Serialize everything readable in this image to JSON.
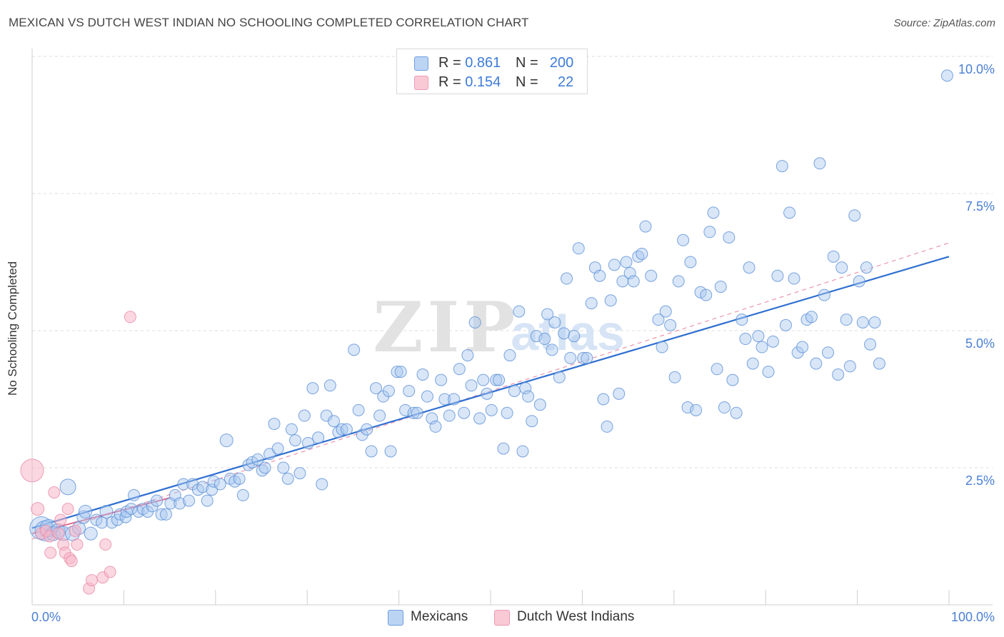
{
  "title": "MEXICAN VS DUTCH WEST INDIAN NO SCHOOLING COMPLETED CORRELATION CHART",
  "source": "Source: ZipAtlas.com",
  "watermark": {
    "zip": "ZIP",
    "atlas": "atlas"
  },
  "legend_top": [
    {
      "r_label": "R =",
      "r_value": "0.861",
      "n_label": "N =",
      "n_value": "200",
      "color": "#a9c8f0"
    },
    {
      "r_label": "R =",
      "r_value": "0.154",
      "n_label": "N =",
      "n_value": "22",
      "color": "#f7b6c8"
    }
  ],
  "legend_bottom": [
    {
      "label": "Mexicans",
      "color": "#a9c8f0"
    },
    {
      "label": "Dutch West Indians",
      "color": "#f7b6c8"
    }
  ],
  "chart_data": {
    "type": "scatter",
    "title": "MEXICAN VS DUTCH WEST INDIAN NO SCHOOLING COMPLETED CORRELATION CHART",
    "xlabel": "",
    "ylabel": "No Schooling Completed",
    "xlim": [
      0,
      100
    ],
    "ylim": [
      0,
      10
    ],
    "x_tick_labels": [
      "0.0%",
      "100.0%"
    ],
    "y_ticks": [
      2.5,
      5.0,
      7.5,
      10.0
    ],
    "y_tick_labels": [
      "2.5%",
      "5.0%",
      "7.5%",
      "10.0%"
    ],
    "grid": true,
    "legend_position": "top-center",
    "series": [
      {
        "name": "Mexicans",
        "color": "#a9c8f0",
        "stroke": "#5b8fd6",
        "r": 0.861,
        "n": 200,
        "trend": {
          "x": [
            0,
            100
          ],
          "y": [
            1.4,
            6.35
          ]
        },
        "points": [
          [
            1.0,
            1.4,
            16
          ],
          [
            1.4,
            1.35,
            14
          ],
          [
            1.8,
            1.4,
            12
          ],
          [
            2.3,
            1.3,
            10
          ],
          [
            2.8,
            1.35,
            10
          ],
          [
            3.4,
            1.3,
            10
          ],
          [
            3.9,
            2.15,
            11
          ],
          [
            4.4,
            1.3,
            10
          ],
          [
            5.1,
            1.4,
            9
          ],
          [
            5.6,
            1.6,
            9
          ],
          [
            5.8,
            1.7,
            9
          ],
          [
            6.4,
            1.3,
            9
          ],
          [
            7.0,
            1.55,
            8
          ],
          [
            7.6,
            1.5,
            8
          ],
          [
            8.1,
            1.7,
            9
          ],
          [
            8.7,
            1.5,
            8
          ],
          [
            9.3,
            1.55,
            8
          ],
          [
            9.6,
            1.65,
            8
          ],
          [
            10.2,
            1.6,
            8
          ],
          [
            10.3,
            1.7,
            8
          ],
          [
            10.8,
            1.75,
            8
          ],
          [
            11.1,
            2.0,
            8
          ],
          [
            11.6,
            1.7,
            8
          ],
          [
            12.1,
            1.75,
            8
          ],
          [
            12.6,
            1.7,
            8
          ],
          [
            13.1,
            1.8,
            8
          ],
          [
            13.6,
            1.9,
            8
          ],
          [
            14.1,
            1.65,
            8
          ],
          [
            14.6,
            1.65,
            8
          ],
          [
            15.1,
            1.85,
            8
          ],
          [
            15.6,
            2.0,
            8
          ],
          [
            16.1,
            1.85,
            8
          ],
          [
            16.5,
            2.2,
            8
          ],
          [
            17.1,
            1.9,
            8
          ],
          [
            17.5,
            2.2,
            8
          ],
          [
            18.1,
            2.1,
            8
          ],
          [
            18.6,
            2.15,
            8
          ],
          [
            19.1,
            1.9,
            8
          ],
          [
            19.6,
            2.1,
            8
          ],
          [
            19.8,
            2.25,
            8
          ],
          [
            20.5,
            2.2,
            8
          ],
          [
            21.2,
            3.0,
            9
          ],
          [
            21.6,
            2.3,
            8
          ],
          [
            22.1,
            2.25,
            8
          ],
          [
            22.6,
            2.3,
            8
          ],
          [
            23.0,
            2.0,
            8
          ],
          [
            23.6,
            2.55,
            8
          ],
          [
            24.0,
            2.6,
            8
          ],
          [
            24.6,
            2.65,
            8
          ],
          [
            25.1,
            2.45,
            8
          ],
          [
            25.4,
            2.5,
            8
          ],
          [
            25.9,
            2.75,
            8
          ],
          [
            26.4,
            3.3,
            8
          ],
          [
            26.8,
            2.85,
            8
          ],
          [
            27.4,
            2.5,
            8
          ],
          [
            27.9,
            2.3,
            8
          ],
          [
            28.3,
            3.2,
            8
          ],
          [
            28.7,
            3.0,
            8
          ],
          [
            29.2,
            2.4,
            8
          ],
          [
            29.7,
            3.45,
            8
          ],
          [
            30.1,
            2.95,
            8
          ],
          [
            30.6,
            3.95,
            8
          ],
          [
            31.2,
            3.05,
            8
          ],
          [
            31.6,
            2.2,
            8
          ],
          [
            32.1,
            3.45,
            8
          ],
          [
            32.5,
            4.0,
            8
          ],
          [
            32.9,
            3.35,
            8
          ],
          [
            33.4,
            3.15,
            8
          ],
          [
            33.8,
            3.2,
            8
          ],
          [
            34.3,
            3.2,
            8
          ],
          [
            35.1,
            4.65,
            8
          ],
          [
            35.6,
            3.55,
            8
          ],
          [
            36.0,
            3.1,
            8
          ],
          [
            36.5,
            3.2,
            8
          ],
          [
            37.0,
            2.8,
            8
          ],
          [
            37.5,
            3.95,
            8
          ],
          [
            37.9,
            3.45,
            8
          ],
          [
            38.3,
            3.8,
            8
          ],
          [
            38.9,
            3.9,
            8
          ],
          [
            39.1,
            2.8,
            8
          ],
          [
            39.8,
            4.25,
            8
          ],
          [
            40.2,
            4.25,
            8
          ],
          [
            40.7,
            3.55,
            8
          ],
          [
            41.1,
            3.9,
            8
          ],
          [
            41.6,
            3.5,
            8
          ],
          [
            42.0,
            3.5,
            8
          ],
          [
            42.6,
            4.2,
            8
          ],
          [
            43.1,
            3.8,
            8
          ],
          [
            43.6,
            3.4,
            8
          ],
          [
            44.0,
            3.25,
            8
          ],
          [
            44.6,
            4.1,
            8
          ],
          [
            45.0,
            3.75,
            8
          ],
          [
            45.5,
            3.45,
            8
          ],
          [
            46.0,
            3.75,
            8
          ],
          [
            46.6,
            4.3,
            8
          ],
          [
            47.1,
            3.5,
            8
          ],
          [
            47.5,
            4.55,
            8
          ],
          [
            47.9,
            4.0,
            8
          ],
          [
            48.3,
            5.15,
            8
          ],
          [
            48.8,
            3.4,
            8
          ],
          [
            49.2,
            4.1,
            8
          ],
          [
            49.6,
            3.85,
            8
          ],
          [
            50.1,
            3.55,
            8
          ],
          [
            50.6,
            4.1,
            8
          ],
          [
            50.9,
            4.1,
            8
          ],
          [
            51.4,
            2.85,
            8
          ],
          [
            51.8,
            3.5,
            8
          ],
          [
            52.1,
            4.55,
            8
          ],
          [
            52.6,
            3.9,
            8
          ],
          [
            53.1,
            5.35,
            8
          ],
          [
            53.5,
            2.8,
            8
          ],
          [
            53.8,
            3.95,
            8
          ],
          [
            54.1,
            3.8,
            8
          ],
          [
            54.5,
            3.35,
            8
          ],
          [
            55.0,
            4.9,
            8
          ],
          [
            55.4,
            3.65,
            8
          ],
          [
            55.9,
            4.85,
            8
          ],
          [
            56.2,
            5.3,
            8
          ],
          [
            56.7,
            4.65,
            8
          ],
          [
            57.0,
            5.15,
            8
          ],
          [
            57.5,
            4.15,
            8
          ],
          [
            58.0,
            4.95,
            8
          ],
          [
            58.3,
            5.95,
            8
          ],
          [
            58.7,
            4.5,
            8
          ],
          [
            59.1,
            4.9,
            8
          ],
          [
            59.6,
            6.5,
            8
          ],
          [
            60.1,
            4.5,
            8
          ],
          [
            60.5,
            4.5,
            8
          ],
          [
            61.0,
            5.5,
            8
          ],
          [
            61.4,
            6.15,
            8
          ],
          [
            61.9,
            6.0,
            8
          ],
          [
            62.3,
            3.75,
            8
          ],
          [
            62.7,
            3.25,
            8
          ],
          [
            63.1,
            5.55,
            8
          ],
          [
            63.5,
            6.2,
            8
          ],
          [
            64.0,
            3.85,
            8
          ],
          [
            64.4,
            5.9,
            8
          ],
          [
            64.8,
            6.25,
            8
          ],
          [
            65.2,
            6.05,
            8
          ],
          [
            65.6,
            5.9,
            8
          ],
          [
            66.1,
            6.35,
            8
          ],
          [
            66.5,
            6.4,
            8
          ],
          [
            66.9,
            6.9,
            8
          ],
          [
            67.5,
            6.0,
            8
          ],
          [
            68.3,
            5.2,
            8
          ],
          [
            68.7,
            4.7,
            8
          ],
          [
            69.1,
            5.35,
            8
          ],
          [
            69.6,
            5.1,
            8
          ],
          [
            70.1,
            4.15,
            8
          ],
          [
            70.5,
            5.9,
            8
          ],
          [
            71.0,
            6.65,
            8
          ],
          [
            71.5,
            3.6,
            8
          ],
          [
            71.8,
            6.25,
            8
          ],
          [
            72.4,
            3.55,
            8
          ],
          [
            72.9,
            5.7,
            8
          ],
          [
            73.5,
            5.65,
            8
          ],
          [
            73.9,
            6.8,
            8
          ],
          [
            74.3,
            7.15,
            8
          ],
          [
            74.7,
            4.3,
            8
          ],
          [
            75.1,
            5.8,
            8
          ],
          [
            75.5,
            3.6,
            8
          ],
          [
            76.0,
            6.7,
            8
          ],
          [
            76.4,
            4.1,
            8
          ],
          [
            76.8,
            3.5,
            8
          ],
          [
            77.4,
            5.2,
            8
          ],
          [
            77.8,
            4.85,
            8
          ],
          [
            78.2,
            6.15,
            8
          ],
          [
            78.6,
            4.4,
            8
          ],
          [
            79.2,
            4.9,
            8
          ],
          [
            79.6,
            4.7,
            8
          ],
          [
            80.3,
            4.25,
            8
          ],
          [
            80.8,
            4.8,
            8
          ],
          [
            81.3,
            6.0,
            8
          ],
          [
            81.8,
            8.0,
            8
          ],
          [
            82.2,
            5.1,
            8
          ],
          [
            82.6,
            7.15,
            8
          ],
          [
            83.1,
            5.95,
            8
          ],
          [
            83.5,
            4.6,
            8
          ],
          [
            84.0,
            4.7,
            8
          ],
          [
            84.5,
            5.2,
            8
          ],
          [
            85.0,
            5.25,
            8
          ],
          [
            85.5,
            4.4,
            8
          ],
          [
            85.9,
            8.05,
            8
          ],
          [
            86.4,
            5.65,
            8
          ],
          [
            86.8,
            4.6,
            8
          ],
          [
            87.4,
            6.35,
            8
          ],
          [
            87.9,
            4.2,
            8
          ],
          [
            88.3,
            6.15,
            8
          ],
          [
            88.8,
            5.2,
            8
          ],
          [
            89.2,
            4.35,
            8
          ],
          [
            89.7,
            7.1,
            8
          ],
          [
            90.2,
            5.9,
            8
          ],
          [
            90.6,
            5.15,
            8
          ],
          [
            91.0,
            6.15,
            8
          ],
          [
            91.4,
            4.75,
            8
          ],
          [
            91.9,
            5.15,
            8
          ],
          [
            92.4,
            4.4,
            8
          ],
          [
            99.8,
            9.65,
            8
          ]
        ]
      },
      {
        "name": "Dutch West Indians",
        "color": "#f7b6c8",
        "stroke": "#e88aa5",
        "r": 0.154,
        "n": 22,
        "trend": {
          "x": [
            0,
            15
          ],
          "y": [
            1.3,
            1.95
          ]
        },
        "dashed_trend": {
          "x": [
            0,
            100
          ],
          "y": [
            1.2,
            6.6
          ]
        },
        "points": [
          [
            0.0,
            2.45,
            16
          ],
          [
            0.6,
            1.75,
            9
          ],
          [
            1.0,
            1.3,
            8
          ],
          [
            1.5,
            1.35,
            8
          ],
          [
            1.9,
            1.25,
            8
          ],
          [
            2.0,
            0.95,
            8
          ],
          [
            2.4,
            2.05,
            8
          ],
          [
            2.9,
            1.3,
            8
          ],
          [
            3.1,
            1.55,
            8
          ],
          [
            3.4,
            1.1,
            8
          ],
          [
            3.6,
            0.95,
            8
          ],
          [
            3.9,
            1.75,
            8
          ],
          [
            4.1,
            0.85,
            8
          ],
          [
            4.3,
            0.8,
            8
          ],
          [
            4.7,
            1.35,
            8
          ],
          [
            4.9,
            1.1,
            8
          ],
          [
            6.2,
            0.3,
            8
          ],
          [
            6.5,
            0.45,
            8
          ],
          [
            7.7,
            0.5,
            8
          ],
          [
            8.0,
            1.1,
            8
          ],
          [
            8.5,
            0.6,
            8
          ],
          [
            10.7,
            5.25,
            8
          ]
        ]
      }
    ]
  }
}
